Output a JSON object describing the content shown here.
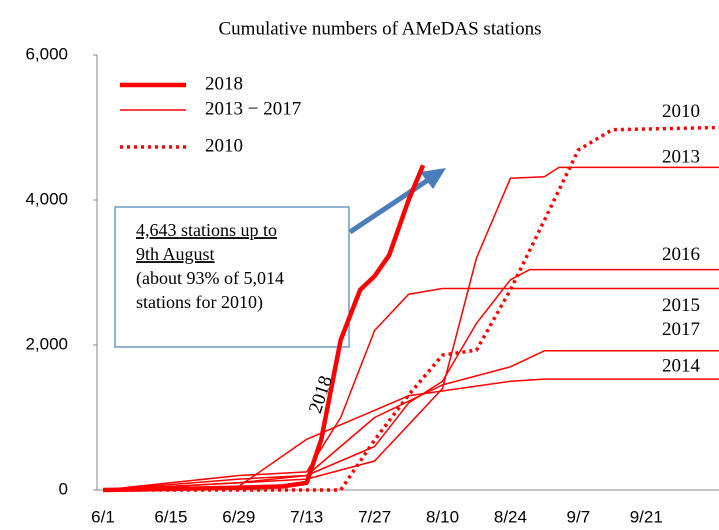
{
  "chart_data": {
    "type": "line",
    "title": "Cumulative numbers of AMeDAS stations",
    "xlim": [
      "6/1",
      "10/6"
    ],
    "xticks": [
      "6/1",
      "6/15",
      "6/29",
      "7/13",
      "7/27",
      "8/10",
      "8/24",
      "9/7",
      "9/21"
    ],
    "ylim": [
      0,
      6000
    ],
    "yticks": [
      0,
      {
        "value": 2000,
        "label": "2,000"
      },
      {
        "value": 4000,
        "label": "4,000"
      },
      {
        "value": 6000,
        "label": "6,000"
      }
    ],
    "color": "#ff0000",
    "legend": [
      {
        "label": "2018",
        "style": "thick"
      },
      {
        "label": "2013 − 2017",
        "style": "thin"
      },
      {
        "label": "2010",
        "style": "dotted"
      }
    ],
    "series": [
      {
        "name": "2018",
        "style": "thick",
        "x": [
          "6/1",
          "6/29",
          "7/8",
          "7/13",
          "7/16",
          "7/20",
          "7/24",
          "7/27",
          "7/30",
          "8/3",
          "8/6"
        ],
        "values": [
          0,
          30,
          50,
          100,
          700,
          2070,
          2760,
          2950,
          3240,
          4000,
          4480
        ]
      },
      {
        "name": "2010",
        "style": "dotted",
        "x": [
          "6/1",
          "7/20",
          "7/27",
          "8/3",
          "8/10",
          "8/17",
          "8/24",
          "8/31",
          "9/7",
          "9/14",
          "10/6"
        ],
        "values": [
          0,
          0,
          690,
          1310,
          1860,
          1930,
          2760,
          3720,
          4690,
          4970,
          5000
        ]
      },
      {
        "name": "2013",
        "style": "thin",
        "x": [
          "6/1",
          "6/29",
          "7/13",
          "7/27",
          "8/3",
          "8/10",
          "8/17",
          "8/24",
          "8/31",
          "9/3",
          "10/6"
        ],
        "values": [
          0,
          100,
          150,
          400,
          900,
          1400,
          3200,
          4300,
          4320,
          4450,
          4450
        ]
      },
      {
        "name": "2016",
        "style": "thin",
        "x": [
          "6/1",
          "6/29",
          "7/13",
          "7/27",
          "8/3",
          "8/10",
          "8/17",
          "8/24",
          "8/28",
          "10/6"
        ],
        "values": [
          0,
          150,
          200,
          600,
          1200,
          1500,
          2300,
          2900,
          3040,
          3040
        ]
      },
      {
        "name": "2015",
        "style": "thin",
        "x": [
          "6/1",
          "6/29",
          "7/13",
          "7/20",
          "7/27",
          "8/3",
          "8/10",
          "10/6"
        ],
        "values": [
          0,
          200,
          250,
          1000,
          2200,
          2700,
          2780,
          2780
        ]
      },
      {
        "name": "2017",
        "style": "thin",
        "x": [
          "6/1",
          "6/29",
          "7/13",
          "7/27",
          "8/10",
          "8/24",
          "8/31",
          "10/6"
        ],
        "values": [
          0,
          100,
          200,
          1000,
          1450,
          1700,
          1920,
          1920
        ]
      },
      {
        "name": "2014",
        "style": "thin",
        "x": [
          "6/1",
          "6/29",
          "7/13",
          "7/27",
          "8/3",
          "8/24",
          "8/31",
          "10/6"
        ],
        "values": [
          0,
          50,
          700,
          1100,
          1300,
          1500,
          1530,
          1530
        ]
      }
    ],
    "annotation": [
      "4,643 stations up to",
      "9th August",
      "(about 93% of 5,014",
      "stations for 2010)"
    ]
  }
}
